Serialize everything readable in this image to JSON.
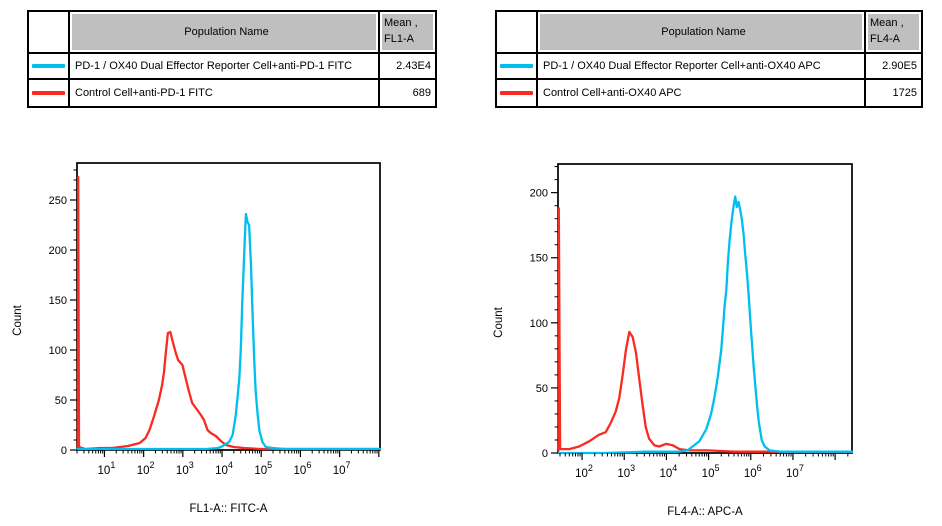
{
  "panels": [
    {
      "id": "fl1-fitc-panel",
      "legend": {
        "header": {
          "population": "Population Name",
          "mean_line1": "Mean ,",
          "mean_line2": "FL1-A"
        },
        "rows": [
          {
            "swatch_color": "#00bfef",
            "population": "PD-1 / OX40 Dual Effector Reporter Cell+anti-PD-1 FITC",
            "mean": "2.43E4"
          },
          {
            "swatch_color": "#fa2a23",
            "population": "Control Cell+anti-PD-1 FITC",
            "mean": "689"
          }
        ]
      },
      "chart_data": {
        "type": "line",
        "title": "",
        "xlabel": "FL1-A:: FITC-A",
        "ylabel": "Count",
        "xscale": "log",
        "x_tick_base": "10",
        "x_range_log10": [
          0.3,
          8.03
        ],
        "x_major_ticks_log10": [
          1,
          2,
          3,
          4,
          5,
          6,
          7
        ],
        "ylim": [
          0,
          287
        ],
        "y_major_ticks": [
          0,
          50,
          100,
          150,
          200,
          250
        ],
        "y_minor_step": 10,
        "grid": false,
        "legend_position": "none",
        "series": [
          {
            "name": "Control Cell+anti-PD-1 FITC",
            "color": "#fa2a23",
            "points": [
              [
                0.32,
                1
              ],
              [
                0.33,
                273
              ],
              [
                0.35,
                3
              ],
              [
                0.5,
                1
              ],
              [
                0.9,
                2
              ],
              [
                1.2,
                2
              ],
              [
                1.6,
                4
              ],
              [
                1.9,
                7
              ],
              [
                2.05,
                12
              ],
              [
                2.15,
                20
              ],
              [
                2.26,
                33
              ],
              [
                2.39,
                50
              ],
              [
                2.47,
                65
              ],
              [
                2.52,
                78
              ],
              [
                2.56,
                95
              ],
              [
                2.62,
                117
              ],
              [
                2.68,
                118
              ],
              [
                2.73,
                110
              ],
              [
                2.82,
                97
              ],
              [
                2.88,
                90
              ],
              [
                2.99,
                85
              ],
              [
                3.07,
                72
              ],
              [
                3.16,
                58
              ],
              [
                3.24,
                47
              ],
              [
                3.33,
                42
              ],
              [
                3.46,
                35
              ],
              [
                3.54,
                30
              ],
              [
                3.63,
                20
              ],
              [
                3.71,
                17
              ],
              [
                3.84,
                14
              ],
              [
                3.97,
                9
              ],
              [
                4.1,
                5
              ],
              [
                4.3,
                3
              ],
              [
                4.55,
                2
              ],
              [
                5.0,
                1
              ],
              [
                8.03,
                1
              ]
            ]
          },
          {
            "name": "PD-1 / OX40 Dual Effector Reporter Cell+anti-PD-1 FITC",
            "color": "#00bfef",
            "points": [
              [
                0.3,
                1
              ],
              [
                2.5,
                1
              ],
              [
                3.6,
                1
              ],
              [
                3.9,
                2
              ],
              [
                3.97,
                3
              ],
              [
                4.18,
                8
              ],
              [
                4.27,
                15
              ],
              [
                4.35,
                35
              ],
              [
                4.44,
                71
              ],
              [
                4.48,
                101
              ],
              [
                4.52,
                151
              ],
              [
                4.57,
                201
              ],
              [
                4.61,
                236
              ],
              [
                4.65,
                228
              ],
              [
                4.69,
                225
              ],
              [
                4.74,
                185
              ],
              [
                4.78,
                135
              ],
              [
                4.82,
                91
              ],
              [
                4.86,
                58
              ],
              [
                4.91,
                35
              ],
              [
                4.95,
                20
              ],
              [
                5.03,
                8
              ],
              [
                5.12,
                3
              ],
              [
                5.29,
                2
              ],
              [
                5.6,
                1
              ],
              [
                8.03,
                1
              ]
            ]
          }
        ]
      }
    },
    {
      "id": "fl4-apc-panel",
      "legend": {
        "header": {
          "population": "Population Name",
          "mean_line1": "Mean ,",
          "mean_line2": "FL4-A"
        },
        "rows": [
          {
            "swatch_color": "#00bfef",
            "population": "PD-1 / OX40 Dual Effector Reporter Cell+anti-OX40 APC",
            "mean": "2.90E5"
          },
          {
            "swatch_color": "#fa2a23",
            "population": "Control Cell+anti-OX40 APC",
            "mean": "1725"
          }
        ]
      },
      "chart_data": {
        "type": "line",
        "title": "",
        "xlabel": "FL4-A:: APC-A",
        "ylabel": "Count",
        "xscale": "log",
        "x_tick_base": "10",
        "x_range_log10": [
          1.43,
          8.4
        ],
        "x_major_ticks_log10": [
          2,
          3,
          4,
          5,
          6,
          7
        ],
        "ylim": [
          0,
          222
        ],
        "y_major_ticks": [
          0,
          50,
          100,
          150,
          200
        ],
        "y_minor_step": 10,
        "grid": false,
        "legend_position": "none",
        "series": [
          {
            "name": "Control Cell+anti-OX40 APC",
            "color": "#fa2a23",
            "points": [
              [
                1.44,
                2
              ],
              [
                1.45,
                188
              ],
              [
                1.48,
                3
              ],
              [
                1.7,
                3
              ],
              [
                1.93,
                5
              ],
              [
                2.17,
                9
              ],
              [
                2.4,
                14
              ],
              [
                2.56,
                16
              ],
              [
                2.68,
                23
              ],
              [
                2.8,
                32
              ],
              [
                2.88,
                42
              ],
              [
                2.96,
                59
              ],
              [
                3.04,
                79
              ],
              [
                3.12,
                93
              ],
              [
                3.2,
                89
              ],
              [
                3.28,
                77
              ],
              [
                3.36,
                56
              ],
              [
                3.43,
                38
              ],
              [
                3.51,
                20
              ],
              [
                3.59,
                11
              ],
              [
                3.71,
                6
              ],
              [
                3.83,
                5
              ],
              [
                3.99,
                7
              ],
              [
                4.15,
                6
              ],
              [
                4.31,
                3
              ],
              [
                4.55,
                2
              ],
              [
                5.0,
                2
              ],
              [
                5.6,
                1
              ],
              [
                8.4,
                1
              ]
            ]
          },
          {
            "name": "PD-1 / OX40 Dual Effector Reporter Cell+anti-OX40 APC",
            "color": "#00bfef",
            "points": [
              [
                1.44,
                0
              ],
              [
                2.5,
                0
              ],
              [
                3.5,
                1
              ],
              [
                4.3,
                1
              ],
              [
                4.5,
                2
              ],
              [
                4.62,
                5
              ],
              [
                4.78,
                9
              ],
              [
                4.94,
                18
              ],
              [
                5.06,
                30
              ],
              [
                5.14,
                43
              ],
              [
                5.22,
                59
              ],
              [
                5.3,
                79
              ],
              [
                5.34,
                95
              ],
              [
                5.38,
                113
              ],
              [
                5.42,
                125
              ],
              [
                5.46,
                148
              ],
              [
                5.5,
                164
              ],
              [
                5.54,
                177
              ],
              [
                5.58,
                187
              ],
              [
                5.63,
                197
              ],
              [
                5.67,
                189
              ],
              [
                5.71,
                193
              ],
              [
                5.75,
                187
              ],
              [
                5.79,
                179
              ],
              [
                5.83,
                168
              ],
              [
                5.87,
                152
              ],
              [
                5.91,
                138
              ],
              [
                5.95,
                121
              ],
              [
                5.99,
                102
              ],
              [
                6.03,
                84
              ],
              [
                6.07,
                66
              ],
              [
                6.11,
                51
              ],
              [
                6.15,
                36
              ],
              [
                6.19,
                24
              ],
              [
                6.26,
                10
              ],
              [
                6.33,
                5
              ],
              [
                6.45,
                2
              ],
              [
                6.7,
                1
              ],
              [
                8.4,
                1
              ]
            ]
          }
        ]
      }
    }
  ]
}
